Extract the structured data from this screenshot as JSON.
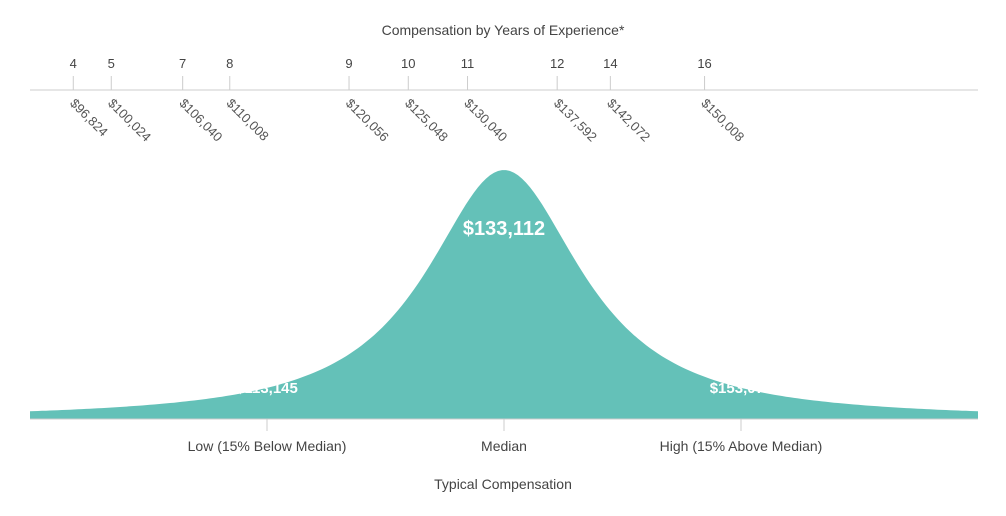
{
  "chart_data": {
    "type": "area",
    "title": "Compensation by Years of Experience*",
    "experience_axis": {
      "ticks": [
        {
          "years": "4",
          "salary": "$96,824",
          "value": 96824
        },
        {
          "years": "5",
          "salary": "$100,024",
          "value": 100024
        },
        {
          "years": "7",
          "salary": "$106,040",
          "value": 106040
        },
        {
          "years": "8",
          "salary": "$110,008",
          "value": 110008
        },
        {
          "years": "9",
          "salary": "$120,056",
          "value": 120056
        },
        {
          "years": "10",
          "salary": "$125,048",
          "value": 125048
        },
        {
          "years": "11",
          "salary": "$130,040",
          "value": 130040
        },
        {
          "years": "12",
          "salary": "$137,592",
          "value": 137592
        },
        {
          "years": "14",
          "salary": "$142,072",
          "value": 142072
        },
        {
          "years": "16",
          "salary": "$150,008",
          "value": 150008
        }
      ]
    },
    "distribution": {
      "low": {
        "label": "Low (15% Below Median)",
        "value": 113145,
        "display": "$113,145"
      },
      "median": {
        "label": "Median",
        "value": 133112,
        "display": "$133,112"
      },
      "high": {
        "label": "High (15% Above Median)",
        "value": 153079,
        "display": "$153,079"
      }
    },
    "xlabel": "Typical Compensation",
    "fill_color": "#64c1b8",
    "axis_color": "#cccccc"
  }
}
